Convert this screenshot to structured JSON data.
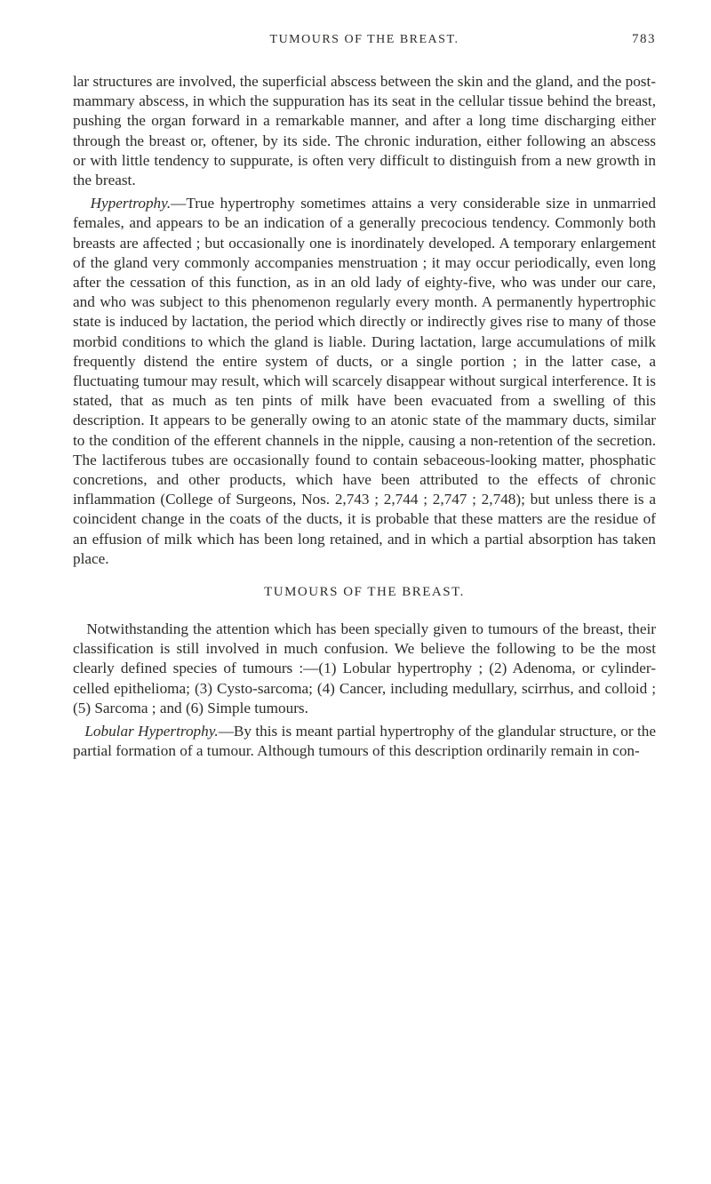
{
  "header": {
    "running_title": "TUMOURS OF THE BREAST.",
    "page_number": "783"
  },
  "section_heading": "TUMOURS OF THE BREAST.",
  "paragraphs": {
    "p1": "lar structures are involved, the superficial abscess between the skin and the gland, and the post-mammary abscess, in which the suppuration has its seat in the cellular tissue behind the breast, pushing the organ forward in a remarkable manner, and after a long time discharging either through the breast or, oftener, by its side. The chronic induration, either following an abscess or with little tendency to suppurate, is often very difficult to distinguish from a new growth in the breast.",
    "p2_lead": "Hypertrophy.",
    "p2": "—True hypertrophy sometimes attains a very considerable size in unmarried females, and appears to be an indication of a generally precocious tendency. Commonly both breasts are affected ; but occasionally one is inordinately developed. A temporary enlargement of the gland very commonly accompanies menstruation ; it may occur periodically, even long after the cessation of this function, as in an old lady of eighty-five, who was under our care, and who was subject to this phenomenon regularly every month. A permanently hypertrophic state is induced by lactation, the period which directly or indirectly gives rise to many of those morbid conditions to which the gland is liable. During lactation, large accumulations of milk frequently distend the entire system of ducts, or a single portion ; in the latter case, a fluctuating tumour may result, which will scarcely disappear without surgical interference. It is stated, that as much as ten pints of milk have been evacuated from a swelling of this description. It appears to be generally owing to an atonic state of the mammary ducts, similar to the condition of the efferent channels in the nipple, causing a non-retention of the secretion. The lactiferous tubes are occasionally found to contain sebaceous-looking matter, phosphatic concretions, and other products, which have been attributed to the effects of chronic inflammation (College of Surgeons, Nos. 2,743 ; 2,744 ; 2,747 ; 2,748); but unless there is a coincident change in the coats of the ducts, it is probable that these matters are the residue of an effusion of milk which has been long retained, and in which a partial absorption has taken place.",
    "p3": "Notwithstanding the attention which has been specially given to tumours of the breast, their classification is still involved in much confusion. We believe the following to be the most clearly defined species of tumours :—(1) Lobular hypertrophy ; (2) Adenoma, or cylinder-celled epithelioma; (3) Cysto-sarcoma; (4) Cancer, including medullary, scirrhus, and colloid ; (5) Sarcoma ; and (6) Simple tumours.",
    "p4_lead": "Lobular Hypertrophy.",
    "p4": "—By this is meant partial hypertrophy of the glandular structure, or the partial formation of a tumour. Although tumours of this description ordinarily remain in con-"
  }
}
